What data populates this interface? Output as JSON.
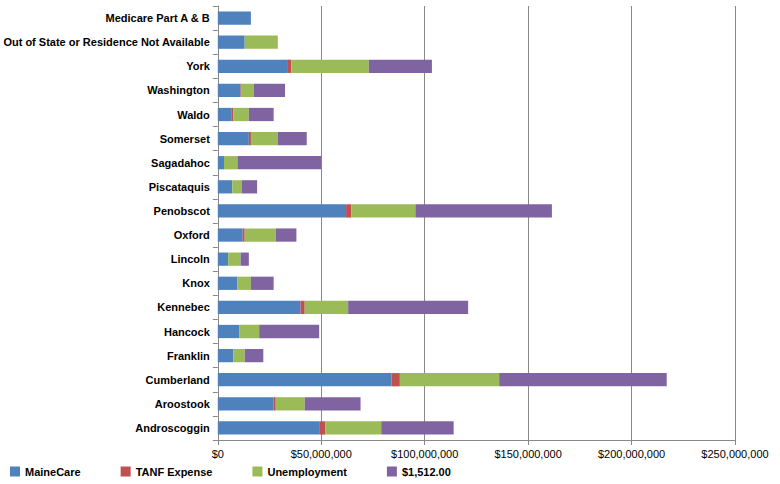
{
  "chart_data": {
    "type": "bar",
    "orientation": "horizontal",
    "stacked": true,
    "grid": true,
    "legend": "bottom-left",
    "categories": [
      "Androscoggin",
      "Aroostook",
      "Cumberland",
      "Franklin",
      "Hancock",
      "Kennebec",
      "Knox",
      "Lincoln",
      "Oxford",
      "Penobscot",
      "Piscataquis",
      "Sagadahoc",
      "Somerset",
      "Waldo",
      "Washington",
      "York",
      "Out of State or Residence Not Available",
      "Medicare Part A & B"
    ],
    "series": [
      {
        "name": "MaineCare",
        "color": "#4f81bd",
        "values": [
          49000000,
          27000000,
          84000000,
          7500000,
          10500000,
          40000000,
          9500000,
          5000000,
          12000000,
          62000000,
          7000000,
          3000000,
          15000000,
          6500000,
          11000000,
          33500000,
          13000000,
          16000000
        ]
      },
      {
        "name": "TANF Expense",
        "color": "#c0504d",
        "values": [
          3000000,
          1000000,
          4000000,
          0,
          0,
          2000000,
          0,
          0,
          1000000,
          2500000,
          0,
          0,
          1000000,
          1000000,
          500000,
          2000000,
          0,
          0
        ]
      },
      {
        "name": "Unemployment",
        "color": "#9bbb59",
        "values": [
          27000000,
          14000000,
          48000000,
          5500000,
          9500000,
          21000000,
          6500000,
          6000000,
          15000000,
          31000000,
          4500000,
          6500000,
          13000000,
          7500000,
          6000000,
          37500000,
          16000000,
          0
        ]
      },
      {
        "name": "$1,512.00",
        "color": "#8064a2",
        "values": [
          35000000,
          27000000,
          81000000,
          9000000,
          29000000,
          58000000,
          11000000,
          4000000,
          10000000,
          66000000,
          7500000,
          40500000,
          14000000,
          12000000,
          15000000,
          30500000,
          0,
          0
        ]
      }
    ],
    "xlim": [
      0,
      250000000
    ],
    "xticks": [
      {
        "value": 0,
        "label": "$0"
      },
      {
        "value": 50000000,
        "label": "$50,000,000"
      },
      {
        "value": 100000000,
        "label": "$100,000,000"
      },
      {
        "value": 150000000,
        "label": "$150,000,000"
      },
      {
        "value": 200000000,
        "label": "$200,000,000"
      },
      {
        "value": 250000000,
        "label": "$250,000,000"
      }
    ]
  }
}
